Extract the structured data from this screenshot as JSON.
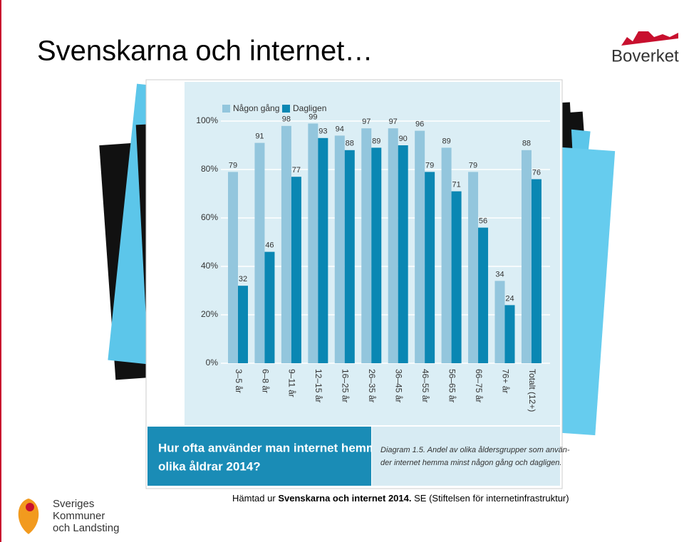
{
  "slide_title": "Svenskarna och internet…",
  "logo_boverket": "Boverket",
  "logo_skl": [
    "Sveriges",
    "Kommuner",
    "och Landsting"
  ],
  "caption": {
    "prefix": "Hämtad ur",
    "source": "Svenskarna och internet 2014.",
    "rest": "SE (Stiftelsen för internetinfrastruktur)"
  },
  "chart_data": {
    "type": "bar",
    "title": [
      "Hur ofta använder man internet hemma i",
      "olika åldrar 2014?"
    ],
    "note": [
      "Diagram 1.5. Andel av olika åldersgrupper som använ-",
      "der internet hemma minst någon gång och dagligen."
    ],
    "categories": [
      "3–5 år",
      "6–8 år",
      "9–11 år",
      "12–15 år",
      "16–25 år",
      "26–35 år",
      "36–45 år",
      "46–55 år",
      "56–65 år",
      "66–75 år",
      "76+ år",
      "Totalt (12+)"
    ],
    "series": [
      {
        "name": "Någon gång",
        "color": "#93c6dd",
        "values": [
          79,
          91,
          98,
          99,
          94,
          97,
          97,
          96,
          89,
          79,
          34,
          88
        ]
      },
      {
        "name": "Dagligen",
        "color": "#0a87b3",
        "values": [
          32,
          46,
          77,
          93,
          88,
          89,
          90,
          79,
          71,
          56,
          24,
          76
        ]
      }
    ],
    "ylim": [
      0,
      100
    ],
    "yticks": [
      {
        "value": 0,
        "label": "0%"
      },
      {
        "value": 20,
        "label": "20%"
      },
      {
        "value": 40,
        "label": "40%"
      },
      {
        "value": 60,
        "label": "60%"
      },
      {
        "value": 80,
        "label": "80%"
      },
      {
        "value": 100,
        "label": "100%"
      }
    ],
    "grid": true
  }
}
